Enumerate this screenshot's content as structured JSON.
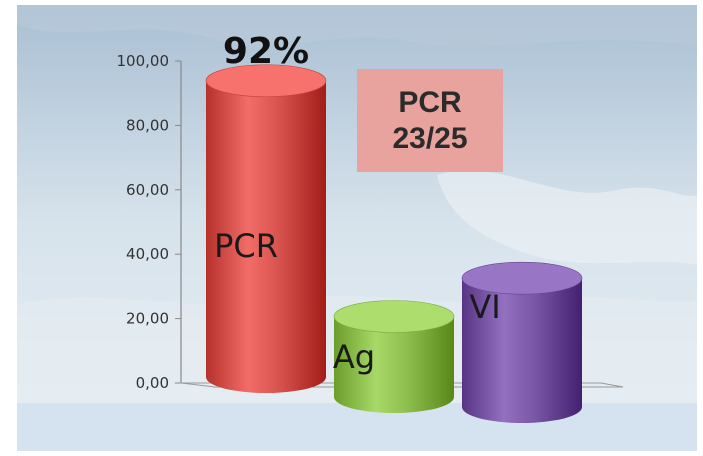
{
  "chart_data": {
    "type": "bar",
    "style": "3d-cylinder",
    "categories": [
      "PCR",
      "Ag",
      "VI"
    ],
    "values": [
      92,
      25,
      40
    ],
    "colors": [
      "#d9534f",
      "#8fc04f",
      "#7b57a8"
    ],
    "ylim": [
      0,
      100
    ],
    "yticks": [
      "0,00",
      "20,00",
      "40,00",
      "60,00",
      "80,00",
      "100,00"
    ],
    "ytick_values": [
      0,
      20,
      40,
      60,
      80,
      100
    ],
    "grid": false,
    "legend": "none",
    "annotations": {
      "top_label": "92%",
      "note_line1": "PCR",
      "note_line2": "23/25"
    }
  }
}
